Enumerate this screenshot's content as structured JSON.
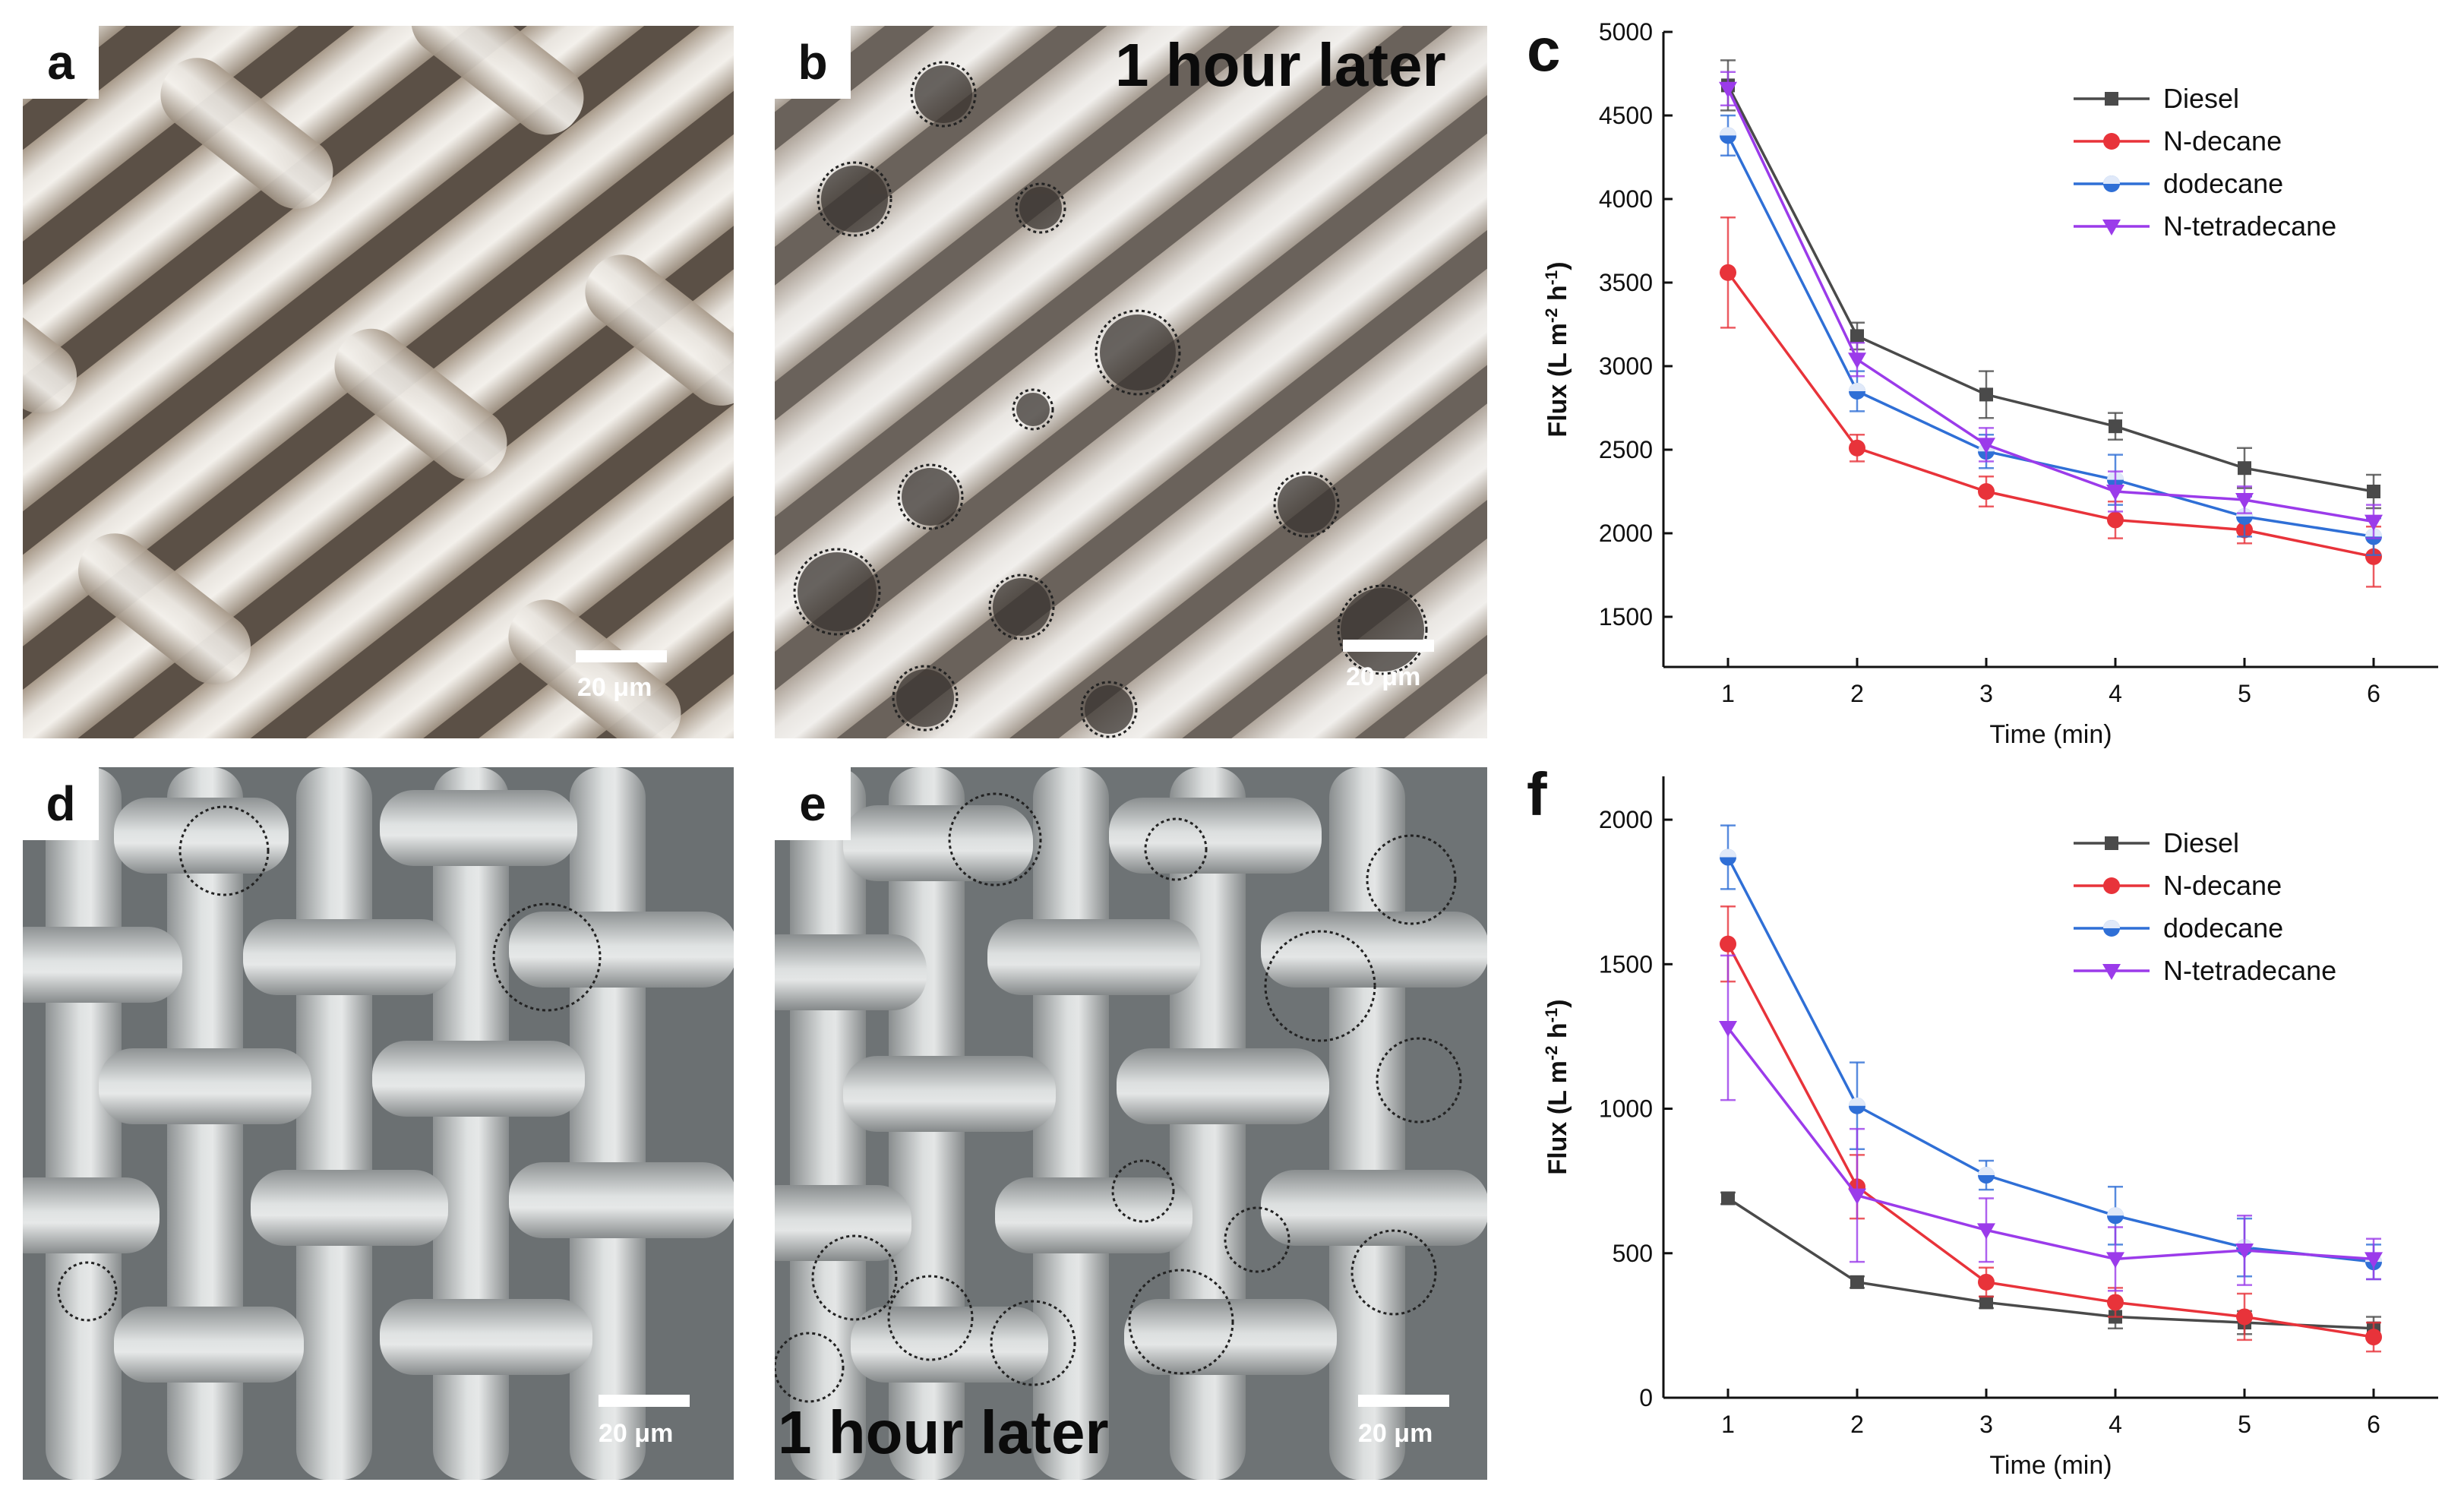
{
  "panels": {
    "a": {
      "letter": "a",
      "scale": "20 μm"
    },
    "b": {
      "letter": "b",
      "scale": "20 μm",
      "overlay": "1 hour later"
    },
    "d": {
      "letter": "d",
      "scale": "20 μm"
    },
    "e": {
      "letter": "e",
      "scale": "20 μm",
      "overlay": "1 hour later"
    }
  },
  "colors": {
    "Diesel": "#4a4a4a",
    "N-decane": "#e8333a",
    "dodecane": "#2f6fd6",
    "N-tetradecane": "#9b3bea"
  },
  "chart_data": [
    {
      "id": "c",
      "panel_letter": "c",
      "type": "line",
      "x": [
        1,
        2,
        3,
        4,
        5,
        6
      ],
      "xlabel": "Time (min)",
      "ylabel": "Flux (L m-2 h-1)",
      "ylabel_parts": {
        "pre": "Flux (L m",
        "exp1": "-2",
        "mid": " h",
        "exp2": "-1",
        "post": ")"
      },
      "xlim": [
        0.5,
        6.5
      ],
      "ylim": [
        1200,
        5000
      ],
      "yticks": [
        1500,
        2000,
        2500,
        3000,
        3500,
        4000,
        4500,
        5000
      ],
      "xticks": [
        1,
        2,
        3,
        4,
        5,
        6
      ],
      "legend_position": "top-right",
      "series": [
        {
          "name": "Diesel",
          "values": [
            4680,
            3180,
            2830,
            2640,
            2390,
            2250
          ],
          "err": [
            150,
            80,
            140,
            80,
            120,
            100
          ]
        },
        {
          "name": "N-decane",
          "values": [
            3560,
            2510,
            2250,
            2080,
            2020,
            1860
          ],
          "err": [
            330,
            80,
            90,
            110,
            80,
            180
          ]
        },
        {
          "name": "dodecane",
          "values": [
            4380,
            2850,
            2490,
            2320,
            2100,
            1980
          ],
          "err": [
            120,
            120,
            100,
            150,
            120,
            110
          ]
        },
        {
          "name": "N-tetradecane",
          "values": [
            4660,
            3040,
            2530,
            2250,
            2200,
            2070
          ],
          "err": [
            100,
            100,
            100,
            120,
            80,
            100
          ]
        }
      ]
    },
    {
      "id": "f",
      "panel_letter": "f",
      "type": "line",
      "x": [
        1,
        2,
        3,
        4,
        5,
        6
      ],
      "xlabel": "Time (min)",
      "ylabel": "Flux (L m-2 h-1)",
      "ylabel_parts": {
        "pre": "Flux (L m",
        "exp1": "-2",
        "mid": " h",
        "exp2": "-1",
        "post": ")"
      },
      "xlim": [
        0.5,
        6.5
      ],
      "ylim": [
        0,
        2150
      ],
      "yticks": [
        0,
        500,
        1000,
        1500,
        2000
      ],
      "xticks": [
        1,
        2,
        3,
        4,
        5,
        6
      ],
      "legend_position": "top-right",
      "series": [
        {
          "name": "Diesel",
          "values": [
            690,
            400,
            330,
            280,
            260,
            240
          ],
          "err": [
            20,
            20,
            20,
            40,
            40,
            40
          ]
        },
        {
          "name": "N-decane",
          "values": [
            1570,
            730,
            400,
            330,
            280,
            210
          ],
          "err": [
            130,
            110,
            50,
            50,
            80,
            50
          ]
        },
        {
          "name": "dodecane",
          "values": [
            1870,
            1010,
            770,
            630,
            520,
            470
          ],
          "err": [
            110,
            150,
            50,
            100,
            100,
            60
          ]
        },
        {
          "name": "N-tetradecane",
          "values": [
            1280,
            700,
            580,
            480,
            510,
            480
          ],
          "err": [
            250,
            230,
            110,
            110,
            120,
            70
          ]
        }
      ]
    }
  ]
}
